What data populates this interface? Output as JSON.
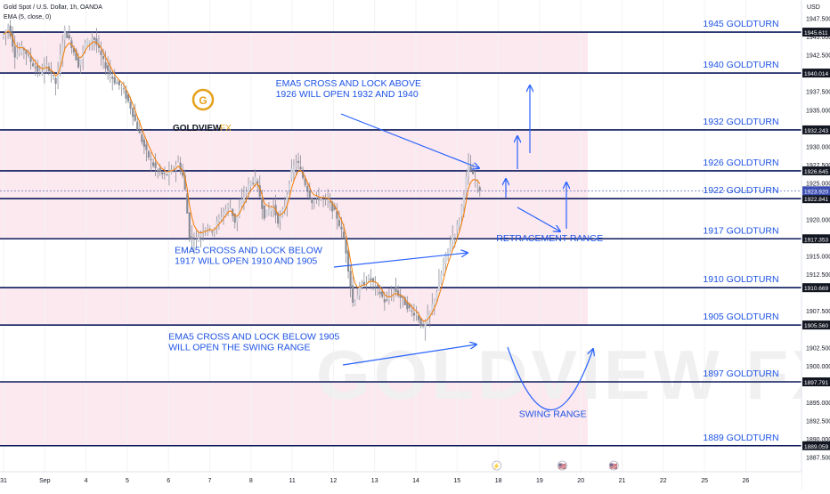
{
  "header": {
    "symbol": "Gold Spot / U.S. Dollar, 1h, OANDA",
    "indicator": "EMA (5, close, 0)",
    "currency": "USD"
  },
  "logo": {
    "letter": "G",
    "brand": "GOLDVIEW",
    "suffix": "FX"
  },
  "watermark": "GOLDVIEW FX",
  "colors": {
    "level_line": "#0c1a5c",
    "annotation_blue": "#2962ff",
    "label_blue": "#1e53e5",
    "band_pink": "#fce4ec",
    "candle": "#b2b5be",
    "ema": "#f57c00",
    "price_tag": "#131722",
    "current_price_tag": "#3f51b5"
  },
  "chart_data": {
    "type": "candlestick",
    "title": "Gold Spot / U.S. Dollar, 1h, OANDA",
    "ylim": [
      1885.5,
      1950.0
    ],
    "y_ticks": [
      1947.5,
      1945.0,
      1942.5,
      1937.5,
      1935.0,
      1930.0,
      1927.5,
      1925.0,
      1920.0,
      1915.0,
      1912.5,
      1907.5,
      1902.5,
      1900.0,
      1895.0,
      1892.5,
      1890.0,
      1887.5
    ],
    "x_ticks": [
      {
        "label": "31",
        "pos": 0.0
      },
      {
        "label": "Sep",
        "pos": 1.0
      },
      {
        "label": "4",
        "pos": 2.0
      },
      {
        "label": "5",
        "pos": 3.0
      },
      {
        "label": "6",
        "pos": 4.0
      },
      {
        "label": "7",
        "pos": 5.0
      },
      {
        "label": "8",
        "pos": 6.0
      },
      {
        "label": "11",
        "pos": 7.0
      },
      {
        "label": "12",
        "pos": 8.0
      },
      {
        "label": "13",
        "pos": 9.0
      },
      {
        "label": "14",
        "pos": 10.0
      },
      {
        "label": "15",
        "pos": 11.0
      },
      {
        "label": "18",
        "pos": 12.0
      },
      {
        "label": "19",
        "pos": 13.0
      },
      {
        "label": "20",
        "pos": 14.0
      },
      {
        "label": "21",
        "pos": 15.0
      },
      {
        "label": "22",
        "pos": 16.0
      },
      {
        "label": "25",
        "pos": 17.0
      },
      {
        "label": "26",
        "pos": 18.0
      }
    ],
    "levels": [
      {
        "price": 1945.611,
        "tag": "1945.611",
        "label": "1945 GOLDTURN"
      },
      {
        "price": 1940.014,
        "tag": "1940.014",
        "label": "1940 GOLDTURN"
      },
      {
        "price": 1932.243,
        "tag": "1932.243",
        "label": "1932 GOLDTURN"
      },
      {
        "price": 1926.645,
        "tag": "1926.645",
        "label": "1926 GOLDTURN"
      },
      {
        "price": 1922.841,
        "tag": "1922.841",
        "label": "1922 GOLDTURN"
      },
      {
        "price": 1917.353,
        "tag": "1917.353",
        "label": "1917 GOLDTURN"
      },
      {
        "price": 1910.669,
        "tag": "1910.669",
        "label": "1910 GOLDTURN"
      },
      {
        "price": 1905.56,
        "tag": "1905.560",
        "label": "1905 GOLDTURN"
      },
      {
        "price": 1897.791,
        "tag": "1897.791",
        "label": "1897 GOLDTURN"
      },
      {
        "price": 1889.059,
        "tag": "1889.059",
        "label": "1889 GOLDTURN"
      }
    ],
    "current_price": {
      "price": 1923.92,
      "tag": "1923.920"
    },
    "bands": [
      [
        1940.014,
        1945.611
      ],
      [
        1926.645,
        1932.243
      ],
      [
        1922.841,
        1926.645
      ],
      [
        1917.353,
        1922.841
      ],
      [
        1905.56,
        1910.669
      ],
      [
        1889.059,
        1897.791
      ]
    ],
    "price_path": [
      {
        "t": 0.0,
        "p": 1945.0
      },
      {
        "t": 0.15,
        "p": 1946.5
      },
      {
        "t": 0.3,
        "p": 1942.5
      },
      {
        "t": 0.5,
        "p": 1943.5
      },
      {
        "t": 0.7,
        "p": 1941.5
      },
      {
        "t": 0.9,
        "p": 1940.0
      },
      {
        "t": 1.1,
        "p": 1941.0
      },
      {
        "t": 1.3,
        "p": 1938.5
      },
      {
        "t": 1.5,
        "p": 1946.0
      },
      {
        "t": 1.7,
        "p": 1943.5
      },
      {
        "t": 1.85,
        "p": 1941.0
      },
      {
        "t": 2.0,
        "p": 1944.0
      },
      {
        "t": 2.2,
        "p": 1945.0
      },
      {
        "t": 2.45,
        "p": 1941.5
      },
      {
        "t": 2.7,
        "p": 1939.0
      },
      {
        "t": 2.9,
        "p": 1938.0
      },
      {
        "t": 3.1,
        "p": 1935.5
      },
      {
        "t": 3.3,
        "p": 1932.0
      },
      {
        "t": 3.5,
        "p": 1929.0
      },
      {
        "t": 3.7,
        "p": 1927.0
      },
      {
        "t": 3.9,
        "p": 1926.0
      },
      {
        "t": 4.1,
        "p": 1926.5
      },
      {
        "t": 4.25,
        "p": 1928.0
      },
      {
        "t": 4.4,
        "p": 1925.5
      },
      {
        "t": 4.55,
        "p": 1917.0
      },
      {
        "t": 4.75,
        "p": 1917.5
      },
      {
        "t": 4.9,
        "p": 1919.0
      },
      {
        "t": 5.1,
        "p": 1918.5
      },
      {
        "t": 5.3,
        "p": 1920.5
      },
      {
        "t": 5.5,
        "p": 1922.0
      },
      {
        "t": 5.65,
        "p": 1919.5
      },
      {
        "t": 5.8,
        "p": 1922.5
      },
      {
        "t": 6.0,
        "p": 1925.0
      },
      {
        "t": 6.15,
        "p": 1925.5
      },
      {
        "t": 6.35,
        "p": 1920.5
      },
      {
        "t": 6.55,
        "p": 1922.0
      },
      {
        "t": 6.7,
        "p": 1919.5
      },
      {
        "t": 6.85,
        "p": 1922.0
      },
      {
        "t": 7.0,
        "p": 1926.5
      },
      {
        "t": 7.15,
        "p": 1928.0
      },
      {
        "t": 7.3,
        "p": 1925.5
      },
      {
        "t": 7.5,
        "p": 1922.5
      },
      {
        "t": 7.7,
        "p": 1923.0
      },
      {
        "t": 7.9,
        "p": 1922.5
      },
      {
        "t": 8.1,
        "p": 1920.5
      },
      {
        "t": 8.3,
        "p": 1917.0
      },
      {
        "t": 8.5,
        "p": 1908.5
      },
      {
        "t": 8.7,
        "p": 1911.0
      },
      {
        "t": 8.9,
        "p": 1912.0
      },
      {
        "t": 9.1,
        "p": 1910.5
      },
      {
        "t": 9.3,
        "p": 1908.5
      },
      {
        "t": 9.5,
        "p": 1910.5
      },
      {
        "t": 9.7,
        "p": 1909.0
      },
      {
        "t": 9.9,
        "p": 1907.5
      },
      {
        "t": 10.05,
        "p": 1907.0
      },
      {
        "t": 10.2,
        "p": 1905.0
      },
      {
        "t": 10.35,
        "p": 1907.0
      },
      {
        "t": 10.55,
        "p": 1910.5
      },
      {
        "t": 10.75,
        "p": 1915.0
      },
      {
        "t": 10.9,
        "p": 1917.5
      },
      {
        "t": 11.0,
        "p": 1918.5
      },
      {
        "t": 11.1,
        "p": 1920.5
      },
      {
        "t": 11.2,
        "p": 1924.0
      },
      {
        "t": 11.3,
        "p": 1927.5
      },
      {
        "t": 11.4,
        "p": 1926.0
      },
      {
        "t": 11.5,
        "p": 1925.0
      },
      {
        "t": 11.6,
        "p": 1923.9
      }
    ]
  },
  "annotations": [
    {
      "lines": [
        "EMA5 CROSS AND LOCK ABOVE",
        "1926 WILL OPEN 1932 AND 1940"
      ],
      "p": 1938.2,
      "t": 6.6
    },
    {
      "lines": [
        "EMA5 CROSS AND LOCK BELOW",
        "1917 WILL OPEN 1910 AND 1905"
      ],
      "p": 1915.4,
      "t": 4.15
    },
    {
      "lines": [
        "EMA5 CROSS AND LOCK BELOW 1905",
        "WILL OPEN THE SWING RANGE"
      ],
      "p": 1903.6,
      "t": 4.0
    },
    {
      "lines": [
        "RETRACEMENT RANGE"
      ],
      "p": 1917.0,
      "t": 11.95
    },
    {
      "lines": [
        "SWING RANGE"
      ],
      "p": 1893.0,
      "t": 12.5
    }
  ],
  "event_icons": [
    {
      "name": "lightning-event",
      "t": 11.96,
      "glyph": "⚡"
    },
    {
      "name": "us-flag-event",
      "t": 13.55,
      "glyph": "🇺🇸"
    },
    {
      "name": "us-flag-event",
      "t": 14.8,
      "glyph": "🇺🇸"
    }
  ]
}
